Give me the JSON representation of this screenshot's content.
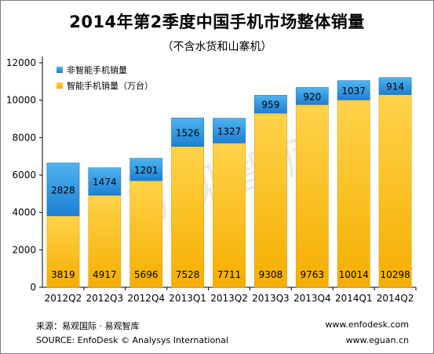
{
  "header": {
    "title": "2014年第2季度中国手机市场整体销量",
    "subtitle": "（不含水货和山寨机）"
  },
  "watermark": "易观智库",
  "footer": {
    "source_cn": "来源：易观国际 · 易观智库",
    "source_en": "SOURCE: EnfoDesk © Analysys International",
    "url1": "www.enfodesk.com",
    "url2": "www.eguan.cn"
  },
  "colors": {
    "smart_top": "#ffd34a",
    "smart_bottom": "#f5ae00",
    "nonsmart_top": "#4fb4ef",
    "nonsmart_bottom": "#1d7fd3",
    "bar_label": "#000000"
  },
  "chart_data": {
    "type": "bar",
    "stacked": true,
    "categories": [
      "2012Q2",
      "2012Q3",
      "2012Q4",
      "2013Q1",
      "2013Q2",
      "2013Q3",
      "2013Q4",
      "2014Q1",
      "2014Q2"
    ],
    "series": [
      {
        "name": "智能手机销量（万台）",
        "values": [
          3819,
          4917,
          5696,
          7528,
          7711,
          9308,
          9763,
          10014,
          10298
        ],
        "color": "#f5ae00"
      },
      {
        "name": "非智能手机销量",
        "values": [
          2828,
          1474,
          1201,
          1526,
          1327,
          959,
          920,
          1037,
          914
        ],
        "color": "#1d7fd3"
      }
    ],
    "ylim": [
      0,
      12000
    ],
    "yticks": [
      0,
      2000,
      4000,
      6000,
      8000,
      10000,
      12000
    ],
    "grid": false,
    "legend_position": "top-left"
  }
}
